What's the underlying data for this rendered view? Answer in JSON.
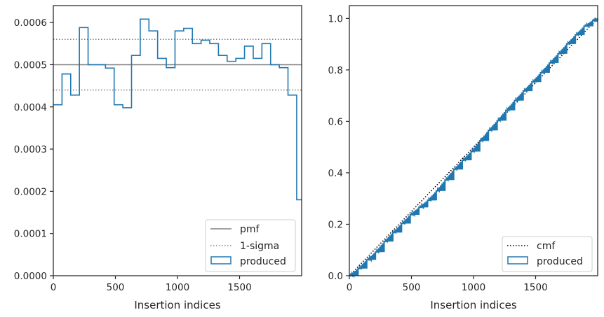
{
  "colors": {
    "produced": "#2178b0",
    "pmf": "#808080",
    "sigma": "#808080",
    "cmf": "#000000",
    "axes": "#262626"
  },
  "chart_data": [
    {
      "type": "histogram",
      "xlabel": "Insertion indices",
      "ylabel": "",
      "xlim": [
        0,
        2000
      ],
      "ylim": [
        0,
        0.00064
      ],
      "xticks": [
        0,
        500,
        1000,
        1500
      ],
      "xtick_labels": [
        "0",
        "500",
        "1000",
        "1500"
      ],
      "yticks": [
        0,
        0.0001,
        0.0002,
        0.0003,
        0.0004,
        0.0005,
        0.0006
      ],
      "ytick_labels": [
        "0.0000",
        "0.0001",
        "0.0002",
        "0.0003",
        "0.0004",
        "0.0005",
        "0.0006"
      ],
      "legend_position": "lower-right",
      "grid": false,
      "bin_width": 70,
      "pmf": 0.0005,
      "sigma_band": [
        0.00044,
        0.00056
      ],
      "legend": [
        "pmf",
        "1-sigma",
        "produced"
      ],
      "series": [
        {
          "name": "produced",
          "style": "step-histogram",
          "bin_edges": [
            0,
            70,
            140,
            210,
            280,
            350,
            420,
            490,
            560,
            630,
            700,
            770,
            840,
            910,
            980,
            1050,
            1120,
            1190,
            1260,
            1330,
            1400,
            1470,
            1540,
            1610,
            1680,
            1750,
            1820,
            1890,
            1960,
            2000
          ],
          "values": [
            0.000405,
            0.000478,
            0.000428,
            0.000588,
            0.0005,
            0.0005,
            0.000492,
            0.000405,
            0.000398,
            0.000522,
            0.000608,
            0.00058,
            0.000515,
            0.000493,
            0.00058,
            0.000586,
            0.00055,
            0.000558,
            0.00055,
            0.000522,
            0.000508,
            0.000515,
            0.000544,
            0.000515,
            0.00055,
            0.0005,
            0.000493,
            0.000428,
            0.00018
          ]
        }
      ]
    },
    {
      "type": "line",
      "xlabel": "Insertion indices",
      "ylabel": "",
      "xlim": [
        0,
        2000
      ],
      "ylim": [
        0,
        1.05
      ],
      "xticks": [
        0,
        500,
        1000,
        1500
      ],
      "xtick_labels": [
        "0",
        "500",
        "1000",
        "1500"
      ],
      "yticks": [
        0,
        0.2,
        0.4,
        0.6,
        0.8,
        1.0
      ],
      "ytick_labels": [
        "0.0",
        "0.2",
        "0.4",
        "0.6",
        "0.8",
        "1.0"
      ],
      "legend_position": "lower-right",
      "grid": false,
      "legend": [
        "cmf",
        "produced"
      ],
      "series": [
        {
          "name": "cmf",
          "style": "dotted",
          "x": [
            0,
            2000
          ],
          "y": [
            0,
            1.0
          ]
        },
        {
          "name": "produced",
          "style": "step-cumulative",
          "x": [
            0,
            70,
            140,
            210,
            280,
            350,
            420,
            490,
            560,
            630,
            700,
            770,
            840,
            910,
            980,
            1050,
            1120,
            1190,
            1260,
            1330,
            1400,
            1470,
            1540,
            1610,
            1680,
            1750,
            1820,
            1890,
            1960,
            2000
          ],
          "y": [
            0,
            0.028,
            0.062,
            0.092,
            0.133,
            0.168,
            0.203,
            0.237,
            0.266,
            0.293,
            0.33,
            0.372,
            0.413,
            0.449,
            0.483,
            0.524,
            0.565,
            0.603,
            0.643,
            0.681,
            0.718,
            0.753,
            0.789,
            0.827,
            0.863,
            0.901,
            0.936,
            0.97,
            0.993,
            1.0
          ]
        }
      ]
    }
  ]
}
